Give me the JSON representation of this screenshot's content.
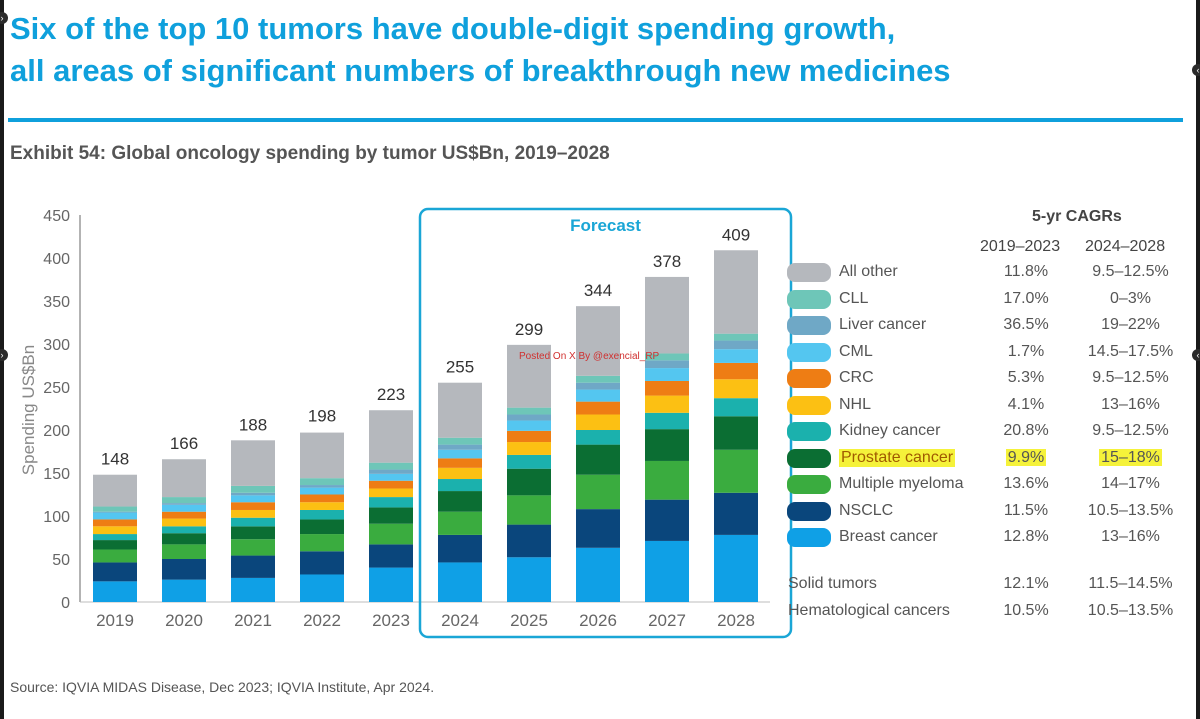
{
  "title_line1": "Six of the top 10 tumors have double-digit spending growth,",
  "title_line2": "all areas of significant numbers of breakthrough new medicines",
  "subtitle": "Exhibit 54: Global oncology spending by tumor US$Bn, 2019–2028",
  "source": "Source: IQVIA MIDAS Disease, Dec 2023; IQVIA Institute, Apr 2024.",
  "watermark": "Posted On X By @exencial_RP",
  "forecast_label": "Forecast",
  "table": {
    "header": "5-yr CAGRs",
    "col1": "2019–2023",
    "col2": "2024–2028",
    "rows": [
      {
        "label": "All other",
        "c1": "11.8%",
        "c2": "9.5–12.5%",
        "color": "#b5b8bd"
      },
      {
        "label": "CLL",
        "c1": "17.0%",
        "c2": "0–3%",
        "color": "#6ec6b8"
      },
      {
        "label": "Liver cancer",
        "c1": "36.5%",
        "c2": "19–22%",
        "color": "#6fa8c6"
      },
      {
        "label": "CML",
        "c1": "1.7%",
        "c2": "14.5–17.5%",
        "color": "#54c6f0"
      },
      {
        "label": "CRC",
        "c1": "5.3%",
        "c2": "9.5–12.5%",
        "color": "#ee7d14"
      },
      {
        "label": "NHL",
        "c1": "4.1%",
        "c2": "13–16%",
        "color": "#fcc013"
      },
      {
        "label": "Kidney cancer",
        "c1": "20.8%",
        "c2": "9.5–12.5%",
        "color": "#1bb1ad"
      },
      {
        "label": "Prostate cancer",
        "c1": "9.9%",
        "c2": "15–18%",
        "color": "#0b6e33",
        "highlight": true
      },
      {
        "label": "Multiple myeloma",
        "c1": "13.6%",
        "c2": "14–17%",
        "color": "#3aac3f"
      },
      {
        "label": "NSCLC",
        "c1": "11.5%",
        "c2": "10.5–13.5%",
        "color": "#0a467c"
      },
      {
        "label": "Breast cancer",
        "c1": "12.8%",
        "c2": "13–16%",
        "color": "#0fa0e6"
      }
    ],
    "summary": [
      {
        "label": "Solid tumors",
        "c1": "12.1%",
        "c2": "11.5–14.5%"
      },
      {
        "label": "Hematological cancers",
        "c1": "10.5%",
        "c2": "10.5–13.5%"
      }
    ]
  },
  "chart_data": {
    "type": "bar",
    "stacked": true,
    "ylabel": "Spending US$Bn",
    "ylim": [
      0,
      450
    ],
    "yticks": [
      0,
      50,
      100,
      150,
      200,
      250,
      300,
      350,
      400,
      450
    ],
    "categories": [
      "2019",
      "2020",
      "2021",
      "2022",
      "2023",
      "2024",
      "2025",
      "2026",
      "2027",
      "2028"
    ],
    "totals": [
      148,
      166,
      188,
      198,
      223,
      255,
      299,
      344,
      378,
      409
    ],
    "forecast_start": "2024",
    "series": [
      {
        "name": "Breast cancer",
        "color": "#0fa0e6",
        "values": [
          24,
          26,
          28,
          32,
          40,
          46,
          52,
          63,
          71,
          78
        ]
      },
      {
        "name": "NSCLC",
        "color": "#0a467c",
        "values": [
          22,
          24,
          26,
          27,
          27,
          32,
          38,
          45,
          48,
          49
        ]
      },
      {
        "name": "Multiple myeloma",
        "color": "#3aac3f",
        "values": [
          15,
          17,
          19,
          20,
          24,
          27,
          34,
          40,
          45,
          50
        ]
      },
      {
        "name": "Prostate cancer",
        "color": "#0b6e33",
        "values": [
          11,
          13,
          15,
          17,
          19,
          24,
          31,
          35,
          37,
          39
        ]
      },
      {
        "name": "Kidney cancer",
        "color": "#1bb1ad",
        "values": [
          7,
          8,
          10,
          11,
          12,
          14,
          16,
          17,
          19,
          21
        ]
      },
      {
        "name": "NHL",
        "color": "#fcc013",
        "values": [
          9,
          9,
          9,
          9,
          10,
          13,
          15,
          18,
          20,
          22
        ]
      },
      {
        "name": "CRC",
        "color": "#ee7d14",
        "values": [
          8,
          8,
          9,
          9,
          9,
          11,
          13,
          15,
          17,
          19
        ]
      },
      {
        "name": "CML",
        "color": "#54c6f0",
        "values": [
          8,
          8,
          8,
          8,
          8,
          10,
          12,
          14,
          15,
          16
        ]
      },
      {
        "name": "Liver cancer",
        "color": "#6fa8c6",
        "values": [
          1,
          2,
          3,
          3,
          5,
          6,
          7,
          8,
          9,
          10
        ]
      },
      {
        "name": "CLL",
        "color": "#6ec6b8",
        "values": [
          6,
          7,
          8,
          8,
          8,
          8,
          8,
          8,
          8,
          8
        ]
      },
      {
        "name": "All other",
        "color": "#b5b8bd",
        "values": [
          37,
          44,
          53,
          53,
          61,
          64,
          73,
          81,
          89,
          97
        ]
      }
    ]
  }
}
